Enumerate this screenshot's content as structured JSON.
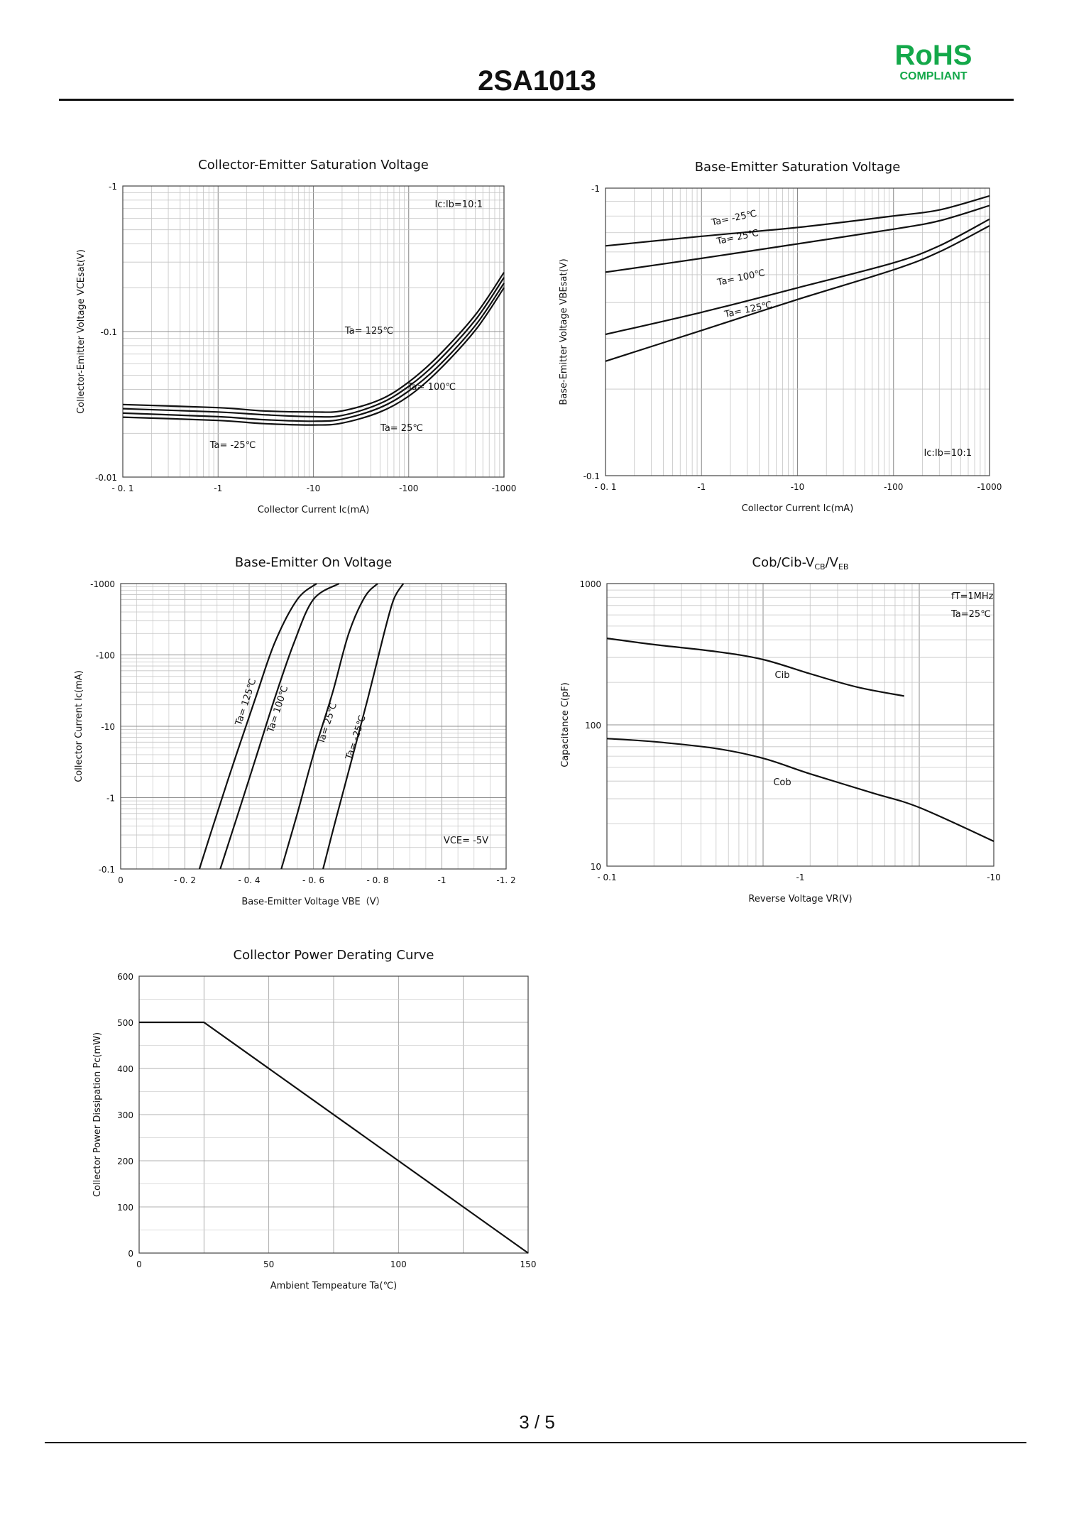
{
  "header": {
    "title": "2SA1013",
    "badge_main": "RoHS",
    "badge_sub": "COMPLIANT"
  },
  "footer": {
    "page": "3 / 5"
  },
  "chart_data": [
    {
      "id": "vcesat",
      "type": "line",
      "title": "Collector-Emitter Saturation Voltage",
      "xlabel": "Collector Current   Ic(mA)",
      "ylabel": "Collector-Emitter Voltage   VCEsat(V)",
      "xscale": "log",
      "yscale": "log",
      "xlim": [
        -0.1,
        -1000
      ],
      "ylim": [
        -0.01,
        -1
      ],
      "xticks": [
        "- 0. 1",
        "-1",
        "-10",
        "-100",
        "-1000"
      ],
      "yticks": [
        "-0.01",
        "-0.1",
        "-1"
      ],
      "note": "Ic:Ib=10:1",
      "series": [
        {
          "name": "Ta= 125℃",
          "x": [
            -0.1,
            -1,
            -3,
            -10,
            -20,
            -50,
            -100,
            -200,
            -500,
            -1000
          ],
          "y": [
            -0.0315,
            -0.03,
            -0.0285,
            -0.028,
            -0.0285,
            -0.034,
            -0.045,
            -0.067,
            -0.13,
            -0.255
          ]
        },
        {
          "name": "Ta= 100℃",
          "x": [
            -0.1,
            -1,
            -3,
            -10,
            -20,
            -50,
            -100,
            -200,
            -500,
            -1000
          ],
          "y": [
            -0.0295,
            -0.028,
            -0.0268,
            -0.026,
            -0.0265,
            -0.032,
            -0.042,
            -0.062,
            -0.12,
            -0.235
          ]
        },
        {
          "name": "Ta= 25℃",
          "x": [
            -0.1,
            -1,
            -3,
            -10,
            -20,
            -50,
            -100,
            -200,
            -500,
            -1000
          ],
          "y": [
            -0.0275,
            -0.026,
            -0.0248,
            -0.0242,
            -0.025,
            -0.03,
            -0.039,
            -0.057,
            -0.11,
            -0.215
          ]
        },
        {
          "name": "Ta= -25℃",
          "x": [
            -0.1,
            -1,
            -3,
            -10,
            -20,
            -50,
            -100,
            -200,
            -500,
            -1000
          ],
          "y": [
            -0.0258,
            -0.0245,
            -0.0233,
            -0.0228,
            -0.0235,
            -0.028,
            -0.036,
            -0.053,
            -0.102,
            -0.2
          ]
        }
      ]
    },
    {
      "id": "vbesat",
      "type": "line",
      "title": "Base-Emitter Saturation Voltage",
      "xlabel": "Collector Current   Ic(mA)",
      "ylabel": "Base-Emitter Voltage   VBEsat(V)",
      "xscale": "log",
      "yscale": "log",
      "xlim": [
        -0.1,
        -1000
      ],
      "ylim": [
        -0.1,
        -1
      ],
      "xticks": [
        "- 0. 1",
        "-1",
        "-10",
        "-100",
        "-1000"
      ],
      "yticks": [
        "-0.1",
        "-1"
      ],
      "note": "Ic:Ib=10:1",
      "series": [
        {
          "name": "Ta= -25℃",
          "x": [
            -0.1,
            -1,
            -10,
            -100,
            -300,
            -1000
          ],
          "y": [
            -0.63,
            -0.68,
            -0.73,
            -0.8,
            -0.84,
            -0.94
          ]
        },
        {
          "name": "Ta= 25℃",
          "x": [
            -0.1,
            -1,
            -10,
            -100,
            -300,
            -1000
          ],
          "y": [
            -0.51,
            -0.57,
            -0.64,
            -0.72,
            -0.77,
            -0.87
          ]
        },
        {
          "name": "Ta= 100℃",
          "x": [
            -0.1,
            -1,
            -10,
            -100,
            -300,
            -1000
          ],
          "y": [
            -0.31,
            -0.37,
            -0.45,
            -0.55,
            -0.63,
            -0.78
          ]
        },
        {
          "name": "Ta= 125℃",
          "x": [
            -0.1,
            -1,
            -10,
            -100,
            -300,
            -1000
          ],
          "y": [
            -0.25,
            -0.32,
            -0.41,
            -0.52,
            -0.6,
            -0.74
          ]
        }
      ]
    },
    {
      "id": "vbeon",
      "type": "line",
      "title": "Base-Emitter On Voltage",
      "xlabel": "Base-Emitter Voltage   VBE（V）",
      "ylabel": "Collector Current   Ic(mA)",
      "xscale": "linear",
      "yscale": "log",
      "xlim": [
        0,
        -1.2
      ],
      "ylim": [
        -0.1,
        -1000
      ],
      "xticks": [
        "0",
        "- 0. 2",
        "- 0. 4",
        "- 0. 6",
        "- 0. 8",
        "-1",
        "-1. 2"
      ],
      "yticks": [
        "-0.1",
        "-1",
        "-10",
        "-100",
        "-1000"
      ],
      "note": "VCE= -5V",
      "series": [
        {
          "name": "Ta= 125℃",
          "x": [
            -0.245,
            -0.3,
            -0.36,
            -0.42,
            -0.48,
            -0.55,
            -0.61
          ],
          "y": [
            -0.1,
            -0.6,
            -4,
            -25,
            -150,
            -600,
            -1000
          ]
        },
        {
          "name": "Ta= 100℃",
          "x": [
            -0.31,
            -0.36,
            -0.42,
            -0.48,
            -0.54,
            -0.6,
            -0.68
          ],
          "y": [
            -0.1,
            -0.5,
            -3.5,
            -25,
            -150,
            -600,
            -1000
          ]
        },
        {
          "name": "Ta= 25℃",
          "x": [
            -0.5,
            -0.55,
            -0.6,
            -0.66,
            -0.71,
            -0.76,
            -0.8
          ],
          "y": [
            -0.1,
            -0.6,
            -4,
            -30,
            -200,
            -650,
            -1000
          ]
        },
        {
          "name": "Ta= -25℃",
          "x": [
            -0.63,
            -0.67,
            -0.72,
            -0.77,
            -0.82,
            -0.85,
            -0.88
          ],
          "y": [
            -0.1,
            -0.5,
            -3.5,
            -25,
            -200,
            -600,
            -1000
          ]
        }
      ]
    },
    {
      "id": "cob",
      "type": "line",
      "title": "Cob/Cib-VCB/VEB",
      "xlabel": "Reverse Voltage   VR(V)",
      "ylabel": "Capacitance   C(pF)",
      "xscale": "log",
      "yscale": "log",
      "xlim": [
        -0.1,
        -30
      ],
      "ylim": [
        10,
        1000
      ],
      "xticks": [
        "- 0.1",
        "-1",
        "-10"
      ],
      "yticks": [
        "10",
        "100",
        "1000"
      ],
      "notes": [
        "fT=1MHz",
        "Ta=25℃"
      ],
      "series": [
        {
          "name": "Cib",
          "x": [
            -0.1,
            -0.2,
            -0.5,
            -1,
            -2,
            -4,
            -8
          ],
          "y": [
            410,
            370,
            330,
            290,
            230,
            185,
            160
          ]
        },
        {
          "name": "Cob",
          "x": [
            -0.1,
            -0.2,
            -0.5,
            -1,
            -2,
            -5,
            -10,
            -30
          ],
          "y": [
            80,
            76,
            68,
            58,
            45,
            33,
            26,
            15
          ]
        }
      ]
    },
    {
      "id": "derating",
      "type": "line",
      "title": "Collector Power Derating Curve",
      "xlabel": "Ambient Tempeature Ta(℃)",
      "ylabel": "Collector Power Dissipation   Pc(mW)",
      "xscale": "linear",
      "yscale": "linear",
      "xlim": [
        0,
        150
      ],
      "ylim": [
        0,
        600
      ],
      "xticks": [
        "0",
        "50",
        "100",
        "150"
      ],
      "yticks": [
        "0",
        "100",
        "200",
        "300",
        "400",
        "500",
        "600"
      ],
      "series": [
        {
          "name": "",
          "x": [
            0,
            25,
            150
          ],
          "y": [
            500,
            500,
            0
          ]
        }
      ]
    }
  ]
}
